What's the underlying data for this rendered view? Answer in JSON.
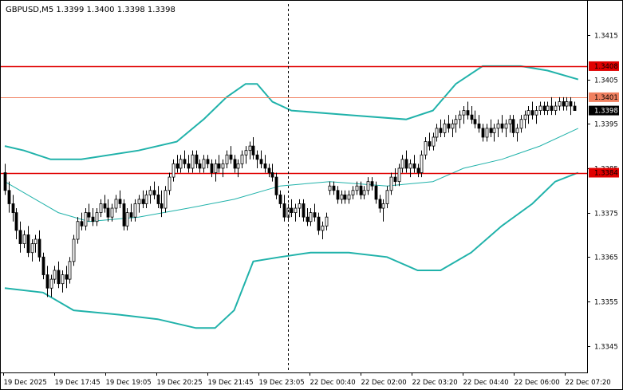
{
  "chart_data": {
    "type": "candlestick",
    "title": "GBPUSD,M5  1.3399 1.3400 1.3398 1.3398",
    "ylim": [
      1.3339,
      1.3422
    ],
    "y_ticks": [
      "1.3415",
      "1.3405",
      "1.3395",
      "1.3385",
      "1.3375",
      "1.3365",
      "1.3355",
      "1.3345"
    ],
    "x_ticks": [
      "19 Dec 2025",
      "19 Dec 17:45",
      "19 Dec 19:05",
      "19 Dec 20:25",
      "19 Dec 21:45",
      "19 Dec 23:05",
      "22 Dec 00:40",
      "22 Dec 02:00",
      "22 Dec 03:20",
      "22 Dec 04:40",
      "22 Dec 06:00",
      "22 Dec 07:20"
    ],
    "bar_count": 150,
    "bars": [
      [
        1.3384,
        1.3386,
        1.3379,
        1.338
      ],
      [
        1.338,
        1.3382,
        1.3375,
        1.3377
      ],
      [
        1.3377,
        1.3379,
        1.3373,
        1.3375
      ],
      [
        1.3375,
        1.3376,
        1.3369,
        1.3371
      ],
      [
        1.3371,
        1.3373,
        1.3366,
        1.3368
      ],
      [
        1.3368,
        1.3371,
        1.3367,
        1.337
      ],
      [
        1.337,
        1.3372,
        1.3365,
        1.3366
      ],
      [
        1.3366,
        1.3369,
        1.3364,
        1.3368
      ],
      [
        1.3368,
        1.337,
        1.3366,
        1.3369
      ],
      [
        1.3369,
        1.3371,
        1.3364,
        1.3365
      ],
      [
        1.3365,
        1.3366,
        1.336,
        1.3361
      ],
      [
        1.3361,
        1.3363,
        1.3356,
        1.3358
      ],
      [
        1.3358,
        1.3361,
        1.3356,
        1.336
      ],
      [
        1.336,
        1.3363,
        1.3359,
        1.3362
      ],
      [
        1.3362,
        1.3364,
        1.3358,
        1.3359
      ],
      [
        1.3359,
        1.3362,
        1.3357,
        1.3361
      ],
      [
        1.3361,
        1.3363,
        1.3358,
        1.336
      ],
      [
        1.336,
        1.3365,
        1.3359,
        1.3364
      ],
      [
        1.3364,
        1.337,
        1.3363,
        1.3369
      ],
      [
        1.3369,
        1.3374,
        1.3368,
        1.3373
      ],
      [
        1.3373,
        1.3375,
        1.3371,
        1.3372
      ],
      [
        1.3372,
        1.3376,
        1.3371,
        1.3375
      ],
      [
        1.3375,
        1.3377,
        1.3373,
        1.3374
      ],
      [
        1.3374,
        1.3376,
        1.3372,
        1.3373
      ],
      [
        1.3373,
        1.3376,
        1.3372,
        1.3375
      ],
      [
        1.3375,
        1.3378,
        1.3374,
        1.3377
      ],
      [
        1.3377,
        1.3379,
        1.3375,
        1.3376
      ],
      [
        1.3376,
        1.3378,
        1.3373,
        1.3374
      ],
      [
        1.3374,
        1.3377,
        1.3373,
        1.3376
      ],
      [
        1.3376,
        1.3379,
        1.3375,
        1.3378
      ],
      [
        1.3378,
        1.338,
        1.3376,
        1.3377
      ],
      [
        1.3377,
        1.3378,
        1.3371,
        1.3372
      ],
      [
        1.3372,
        1.3376,
        1.3371,
        1.3375
      ],
      [
        1.3375,
        1.3377,
        1.3373,
        1.3374
      ],
      [
        1.3374,
        1.3378,
        1.3373,
        1.3377
      ],
      [
        1.3377,
        1.3379,
        1.3375,
        1.3378
      ],
      [
        1.3378,
        1.338,
        1.3376,
        1.3377
      ],
      [
        1.3377,
        1.338,
        1.3376,
        1.3379
      ],
      [
        1.3379,
        1.3381,
        1.3377,
        1.338
      ],
      [
        1.338,
        1.3382,
        1.3378,
        1.3379
      ],
      [
        1.3379,
        1.3381,
        1.3376,
        1.3377
      ],
      [
        1.3377,
        1.338,
        1.3374,
        1.3376
      ],
      [
        1.3376,
        1.3381,
        1.3375,
        1.338
      ],
      [
        1.338,
        1.3384,
        1.3379,
        1.3383
      ],
      [
        1.3383,
        1.3387,
        1.3382,
        1.3386
      ],
      [
        1.3386,
        1.3388,
        1.3384,
        1.3385
      ],
      [
        1.3385,
        1.3388,
        1.3384,
        1.3387
      ],
      [
        1.3387,
        1.3389,
        1.3385,
        1.3386
      ],
      [
        1.3386,
        1.3388,
        1.3384,
        1.3385
      ],
      [
        1.3385,
        1.3389,
        1.3384,
        1.3388
      ],
      [
        1.3388,
        1.3389,
        1.3385,
        1.3386
      ],
      [
        1.3386,
        1.3387,
        1.3384,
        1.3385
      ],
      [
        1.3385,
        1.3388,
        1.3384,
        1.3387
      ],
      [
        1.3387,
        1.3388,
        1.3385,
        1.3386
      ],
      [
        1.3386,
        1.3387,
        1.3383,
        1.3384
      ],
      [
        1.3384,
        1.3387,
        1.3382,
        1.3386
      ],
      [
        1.3386,
        1.3388,
        1.3384,
        1.3385
      ],
      [
        1.3385,
        1.3387,
        1.3383,
        1.3386
      ],
      [
        1.3386,
        1.3389,
        1.3385,
        1.3388
      ],
      [
        1.3388,
        1.339,
        1.3386,
        1.3387
      ],
      [
        1.3387,
        1.3388,
        1.3384,
        1.3385
      ],
      [
        1.3385,
        1.3387,
        1.3383,
        1.3386
      ],
      [
        1.3386,
        1.3389,
        1.3385,
        1.3388
      ],
      [
        1.3388,
        1.339,
        1.3386,
        1.3389
      ],
      [
        1.3389,
        1.3391,
        1.3387,
        1.339
      ],
      [
        1.339,
        1.3392,
        1.3387,
        1.3388
      ],
      [
        1.3388,
        1.3389,
        1.3385,
        1.3387
      ],
      [
        1.3387,
        1.3389,
        1.3385,
        1.3386
      ],
      [
        1.3386,
        1.3388,
        1.3384,
        1.3385
      ],
      [
        1.3385,
        1.3386,
        1.3383,
        1.3384
      ],
      [
        1.3384,
        1.3386,
        1.3382,
        1.3383
      ],
      [
        1.3383,
        1.3384,
        1.3378,
        1.3379
      ],
      [
        1.3379,
        1.338,
        1.3376,
        1.3377
      ],
      [
        1.3377,
        1.3379,
        1.3373,
        1.3374
      ],
      [
        1.3374,
        1.3377,
        1.3373,
        1.3376
      ],
      [
        1.3376,
        1.3378,
        1.3374,
        1.3375
      ],
      [
        1.3375,
        1.3377,
        1.3373,
        1.3376
      ],
      [
        1.3376,
        1.3378,
        1.3374,
        1.3377
      ],
      [
        1.3377,
        1.3378,
        1.3373,
        1.3374
      ],
      [
        1.3374,
        1.3376,
        1.3372,
        1.3373
      ],
      [
        1.3373,
        1.3376,
        1.3372,
        1.3375
      ],
      [
        1.3375,
        1.3377,
        1.3373,
        1.3374
      ],
      [
        1.3374,
        1.3375,
        1.337,
        1.3371
      ],
      [
        1.3371,
        1.3373,
        1.3369,
        1.3372
      ],
      [
        1.3372,
        1.3375,
        1.3371,
        1.3374
      ],
      [
        1.338,
        1.3382,
        1.3379,
        1.3381
      ],
      [
        1.3381,
        1.3382,
        1.3379,
        1.338
      ],
      [
        1.338,
        1.3381,
        1.3377,
        1.3378
      ],
      [
        1.3378,
        1.338,
        1.3377,
        1.3379
      ],
      [
        1.3379,
        1.338,
        1.3377,
        1.3378
      ],
      [
        1.3378,
        1.338,
        1.3377,
        1.3379
      ],
      [
        1.3379,
        1.3381,
        1.3378,
        1.338
      ],
      [
        1.338,
        1.3382,
        1.3379,
        1.3381
      ],
      [
        1.3381,
        1.3382,
        1.3378,
        1.3379
      ],
      [
        1.3379,
        1.3381,
        1.3378,
        1.338
      ],
      [
        1.338,
        1.3383,
        1.3379,
        1.3382
      ],
      [
        1.3382,
        1.3383,
        1.338,
        1.3381
      ],
      [
        1.3381,
        1.3382,
        1.3377,
        1.3378
      ],
      [
        1.3378,
        1.3379,
        1.3375,
        1.3376
      ],
      [
        1.3376,
        1.3378,
        1.3373,
        1.3377
      ],
      [
        1.3377,
        1.3381,
        1.3376,
        1.338
      ],
      [
        1.338,
        1.3384,
        1.3379,
        1.3383
      ],
      [
        1.3383,
        1.3385,
        1.3381,
        1.3382
      ],
      [
        1.3382,
        1.3386,
        1.3381,
        1.3385
      ],
      [
        1.3385,
        1.3388,
        1.3384,
        1.3387
      ],
      [
        1.3387,
        1.3389,
        1.3384,
        1.3385
      ],
      [
        1.3385,
        1.3387,
        1.3383,
        1.3386
      ],
      [
        1.3386,
        1.3388,
        1.3384,
        1.3385
      ],
      [
        1.3385,
        1.3386,
        1.3383,
        1.3384
      ],
      [
        1.3384,
        1.3389,
        1.3383,
        1.3388
      ],
      [
        1.3388,
        1.3392,
        1.3387,
        1.3391
      ],
      [
        1.3391,
        1.3393,
        1.3389,
        1.339
      ],
      [
        1.339,
        1.3393,
        1.3389,
        1.3392
      ],
      [
        1.3392,
        1.3395,
        1.3391,
        1.3394
      ],
      [
        1.3394,
        1.3396,
        1.3392,
        1.3393
      ],
      [
        1.3393,
        1.3396,
        1.3392,
        1.3395
      ],
      [
        1.3395,
        1.3397,
        1.3393,
        1.3394
      ],
      [
        1.3394,
        1.3396,
        1.3392,
        1.3395
      ],
      [
        1.3395,
        1.3397,
        1.3393,
        1.3396
      ],
      [
        1.3396,
        1.3398,
        1.3394,
        1.3397
      ],
      [
        1.3397,
        1.3399,
        1.3395,
        1.3398
      ],
      [
        1.3398,
        1.34,
        1.3396,
        1.3397
      ],
      [
        1.3397,
        1.3399,
        1.3395,
        1.3396
      ],
      [
        1.3396,
        1.3398,
        1.3394,
        1.3395
      ],
      [
        1.3395,
        1.3397,
        1.3393,
        1.3394
      ],
      [
        1.3394,
        1.3395,
        1.3391,
        1.3392
      ],
      [
        1.3392,
        1.3395,
        1.3391,
        1.3394
      ],
      [
        1.3394,
        1.3396,
        1.3392,
        1.3393
      ],
      [
        1.3393,
        1.3395,
        1.3391,
        1.3394
      ],
      [
        1.3394,
        1.3396,
        1.3392,
        1.3395
      ],
      [
        1.3395,
        1.3397,
        1.3393,
        1.3394
      ],
      [
        1.3394,
        1.3396,
        1.3392,
        1.3395
      ],
      [
        1.3395,
        1.3397,
        1.3393,
        1.3396
      ],
      [
        1.3396,
        1.3397,
        1.3392,
        1.3393
      ],
      [
        1.3393,
        1.3395,
        1.3391,
        1.3394
      ],
      [
        1.3394,
        1.3397,
        1.3393,
        1.3396
      ],
      [
        1.3396,
        1.3398,
        1.3394,
        1.3397
      ],
      [
        1.3397,
        1.3399,
        1.3395,
        1.3398
      ],
      [
        1.3398,
        1.34,
        1.3396,
        1.3397
      ],
      [
        1.3397,
        1.3399,
        1.3395,
        1.3398
      ],
      [
        1.3398,
        1.34,
        1.3397,
        1.3399
      ],
      [
        1.3399,
        1.34,
        1.3397,
        1.3398
      ],
      [
        1.3398,
        1.34,
        1.3397,
        1.3399
      ],
      [
        1.3399,
        1.3401,
        1.3397,
        1.3398
      ],
      [
        1.3398,
        1.34,
        1.3397,
        1.3399
      ],
      [
        1.3399,
        1.3401,
        1.3398,
        1.34
      ],
      [
        1.34,
        1.3401,
        1.3398,
        1.3399
      ],
      [
        1.3399,
        1.3401,
        1.3398,
        1.34
      ],
      [
        1.34,
        1.3401,
        1.3397,
        1.3399
      ],
      [
        1.3399,
        1.34,
        1.3398,
        1.3398
      ]
    ],
    "upper_band": [
      [
        0,
        1.339
      ],
      [
        5,
        1.3389
      ],
      [
        12,
        1.3387
      ],
      [
        20,
        1.3387
      ],
      [
        35,
        1.3389
      ],
      [
        45,
        1.3391
      ],
      [
        52,
        1.3396
      ],
      [
        58,
        1.3401
      ],
      [
        63,
        1.3404
      ],
      [
        66,
        1.3404
      ],
      [
        70,
        1.34
      ],
      [
        75,
        1.3398
      ],
      [
        90,
        1.3397
      ],
      [
        105,
        1.3396
      ],
      [
        112,
        1.3398
      ],
      [
        118,
        1.3404
      ],
      [
        125,
        1.3408
      ],
      [
        130,
        1.3408
      ],
      [
        135,
        1.3408
      ],
      [
        142,
        1.3407
      ],
      [
        150,
        1.3405
      ]
    ],
    "middle_band": [
      [
        0,
        1.3382
      ],
      [
        8,
        1.3378
      ],
      [
        14,
        1.3375
      ],
      [
        22,
        1.3373
      ],
      [
        35,
        1.3374
      ],
      [
        48,
        1.3376
      ],
      [
        60,
        1.3378
      ],
      [
        72,
        1.3381
      ],
      [
        85,
        1.3382
      ],
      [
        100,
        1.3381
      ],
      [
        112,
        1.3382
      ],
      [
        120,
        1.3385
      ],
      [
        130,
        1.3387
      ],
      [
        140,
        1.339
      ],
      [
        150,
        1.3394
      ]
    ],
    "lower_band": [
      [
        0,
        1.3358
      ],
      [
        10,
        1.3357
      ],
      [
        18,
        1.3353
      ],
      [
        30,
        1.3352
      ],
      [
        40,
        1.3351
      ],
      [
        50,
        1.3349
      ],
      [
        55,
        1.3349
      ],
      [
        60,
        1.3353
      ],
      [
        65,
        1.3364
      ],
      [
        72,
        1.3365
      ],
      [
        80,
        1.3366
      ],
      [
        90,
        1.3366
      ],
      [
        100,
        1.3365
      ],
      [
        108,
        1.3362
      ],
      [
        114,
        1.3362
      ],
      [
        122,
        1.3366
      ],
      [
        130,
        1.3372
      ],
      [
        138,
        1.3377
      ],
      [
        144,
        1.3382
      ],
      [
        150,
        1.3384
      ]
    ],
    "levels": [
      {
        "label": "1.3408",
        "value": 1.3408,
        "color": "#e00000"
      },
      {
        "label": "1.3401",
        "value": 1.3401,
        "color": "#f08060"
      },
      {
        "label": "1.3384",
        "value": 1.3384,
        "color": "#e00000"
      }
    ],
    "current_price": {
      "label": "1.3398",
      "value": 1.3398
    },
    "cursor_bar": 74,
    "band_color": "#20b2aa",
    "candle_color": "#000000"
  }
}
